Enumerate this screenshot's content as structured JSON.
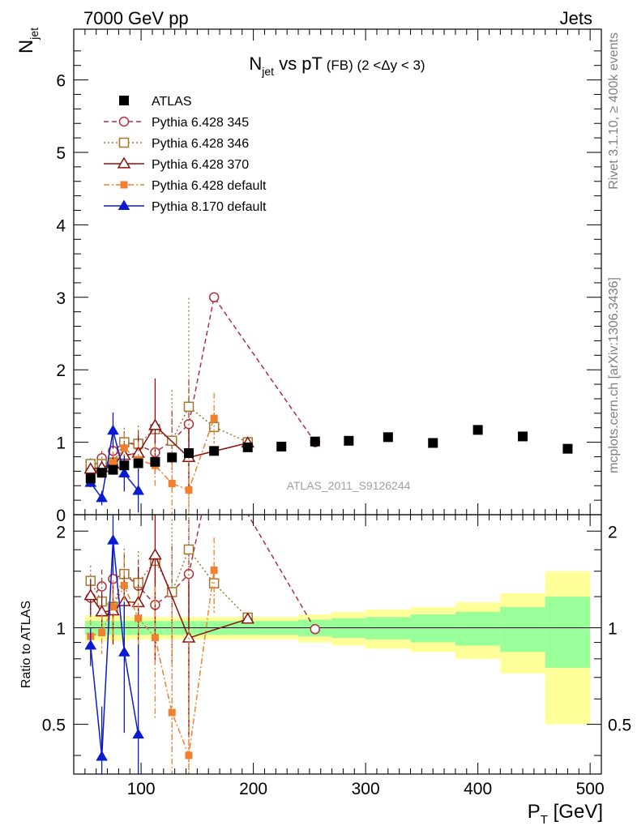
{
  "header": {
    "left": "7000 GeV pp",
    "right": "Jets"
  },
  "side_labels": {
    "top": "Rivet 3.1.10, ≥ 400k events",
    "bottom": "mcplots.cern.ch [arXiv:1306.3436]"
  },
  "analysis_tag": "ATLAS_2011_S9126244",
  "chart_data": {
    "type": "scatter",
    "title": {
      "main": "N",
      "main_sub": "jet",
      "main_tail": " vs pT",
      "small": " (FB) (2 <Δy < 3)"
    },
    "ylabel": {
      "text": "N",
      "sub": "jet"
    },
    "xlabel": {
      "text": "P",
      "sub": "T",
      "tail": " [GeV]"
    },
    "ratio_ylabel": "Ratio to ATLAS",
    "xlim": [
      40,
      510
    ],
    "ylim": [
      0,
      6.7
    ],
    "ratio_ylim": [
      0.35,
      2.25
    ],
    "x_ticks": [
      100,
      200,
      300,
      400,
      500
    ],
    "x_tick_labels": [
      "100",
      "200",
      "300",
      "400",
      "500"
    ],
    "y_ticks": [
      0,
      1,
      2,
      3,
      4,
      5,
      6
    ],
    "y_tick_labels": [
      "0",
      "1",
      "2",
      "3",
      "4",
      "5",
      "6"
    ],
    "ratio_ticks": [
      0.5,
      1,
      2
    ],
    "ratio_tick_labels": [
      "0.5",
      "1",
      "2"
    ],
    "legend_position": "top-left",
    "data": {
      "name": "ATLAS",
      "color": "#000000",
      "x": [
        55,
        65,
        75,
        85,
        97.5,
        112.5,
        127.5,
        142.5,
        165,
        195,
        225,
        255,
        285,
        320,
        360,
        400,
        440,
        480
      ],
      "y": [
        0.5,
        0.58,
        0.62,
        0.68,
        0.71,
        0.73,
        0.79,
        0.85,
        0.88,
        0.93,
        0.94,
        1.01,
        1.02,
        1.07,
        0.99,
        1.17,
        1.08,
        0.91
      ],
      "bins": [
        [
          50,
          60
        ],
        [
          60,
          70
        ],
        [
          70,
          80
        ],
        [
          80,
          90
        ],
        [
          90,
          105
        ],
        [
          105,
          120
        ],
        [
          120,
          135
        ],
        [
          135,
          150
        ],
        [
          150,
          180
        ],
        [
          180,
          210
        ],
        [
          210,
          240
        ],
        [
          240,
          270
        ],
        [
          270,
          300
        ],
        [
          300,
          340
        ],
        [
          340,
          380
        ],
        [
          380,
          420
        ],
        [
          420,
          460
        ],
        [
          460,
          500
        ]
      ],
      "band_inner": [
        0.05,
        0.05,
        0.05,
        0.05,
        0.05,
        0.05,
        0.05,
        0.05,
        0.05,
        0.05,
        0.05,
        0.06,
        0.07,
        0.08,
        0.1,
        0.12,
        0.16,
        0.25
      ],
      "band_outer": [
        0.09,
        0.09,
        0.09,
        0.09,
        0.08,
        0.08,
        0.08,
        0.08,
        0.08,
        0.08,
        0.08,
        0.1,
        0.12,
        0.14,
        0.16,
        0.2,
        0.28,
        0.5
      ]
    },
    "series": [
      {
        "name": "Pythia 6.428 345",
        "color": "#b03040",
        "dash": "6,4",
        "marker": "circle-open",
        "x": [
          55,
          65,
          75,
          85,
          97.5,
          112.5,
          127.5,
          142.5,
          165,
          255
        ],
        "y": [
          0.62,
          0.78,
          0.88,
          1.0,
          0.96,
          0.86,
          1.02,
          1.25,
          3.0,
          1.0
        ],
        "err": [
          0.08,
          0.1,
          0.12,
          0.15,
          0.2,
          0.3,
          0.4,
          0.6,
          0,
          0
        ]
      },
      {
        "name": "Pythia 6.428 346",
        "color": "#a07830",
        "dash": "2,3",
        "marker": "square-open",
        "x": [
          55,
          65,
          75,
          85,
          97.5,
          112.5,
          127.5,
          142.5,
          165,
          195
        ],
        "y": [
          0.7,
          0.7,
          0.72,
          1.0,
          0.98,
          1.18,
          1.02,
          1.49,
          1.21,
          1.0
        ],
        "err": [
          0.08,
          0.1,
          0.15,
          0.2,
          0.25,
          0.35,
          0.7,
          1.5,
          0.2,
          0
        ]
      },
      {
        "name": "Pythia 6.428 370",
        "color": "#8b1010",
        "dash": "",
        "marker": "triangle-open",
        "x": [
          55,
          65,
          75,
          85,
          97.5,
          112.5,
          142.5,
          195
        ],
        "y": [
          0.63,
          0.65,
          0.7,
          0.82,
          0.85,
          1.23,
          0.79,
          0.99
        ],
        "err": [
          0.08,
          0.1,
          0.15,
          0.2,
          0.25,
          0.65,
          0.4,
          0
        ]
      },
      {
        "name": "Pythia 6.428 default",
        "color": "#f08030",
        "dash": "7,3,2,3",
        "marker": "square-filled",
        "x": [
          55,
          65,
          75,
          85,
          97.5,
          112.5,
          127.5,
          142.5,
          165
        ],
        "y": [
          0.47,
          0.56,
          0.72,
          0.92,
          0.76,
          0.68,
          0.43,
          0.34,
          1.33
        ],
        "err": [
          0.06,
          0.08,
          0.15,
          0.2,
          0.25,
          0.3,
          0.45,
          0.5,
          0.35
        ]
      },
      {
        "name": "Pythia 8.170 default",
        "color": "#0a1ad0",
        "dash": "",
        "marker": "triangle-filled",
        "x": [
          55,
          65,
          75,
          85,
          97.5
        ],
        "y": [
          0.44,
          0.23,
          1.16,
          0.57,
          0.33
        ],
        "err": [
          0.06,
          0.1,
          0.25,
          0.25,
          0.3
        ]
      }
    ]
  }
}
